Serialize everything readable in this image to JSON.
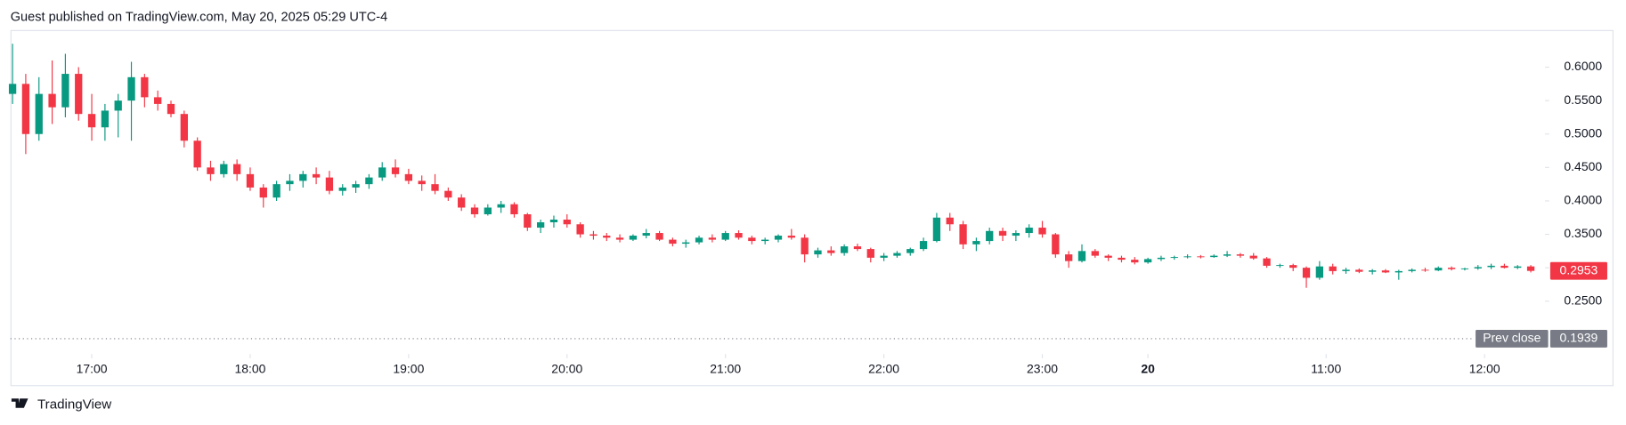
{
  "chart_data": {
    "type": "candlestick",
    "title": "Guest published on TradingView.com, May 20, 2025 05:29 UTC-4",
    "source": "TradingView",
    "up_color": "#089981",
    "down_color": "#f23645",
    "candles": [
      [
        0.56,
        0.635,
        0.545,
        0.575
      ],
      [
        0.575,
        0.59,
        0.47,
        0.5
      ],
      [
        0.5,
        0.585,
        0.49,
        0.56
      ],
      [
        0.56,
        0.61,
        0.515,
        0.54
      ],
      [
        0.54,
        0.62,
        0.525,
        0.59
      ],
      [
        0.59,
        0.6,
        0.52,
        0.53
      ],
      [
        0.53,
        0.56,
        0.49,
        0.51
      ],
      [
        0.51,
        0.545,
        0.49,
        0.535
      ],
      [
        0.535,
        0.56,
        0.495,
        0.55
      ],
      [
        0.55,
        0.608,
        0.49,
        0.585
      ],
      [
        0.585,
        0.59,
        0.54,
        0.555
      ],
      [
        0.555,
        0.565,
        0.535,
        0.545
      ],
      [
        0.545,
        0.55,
        0.525,
        0.53
      ],
      [
        0.53,
        0.535,
        0.48,
        0.49
      ],
      [
        0.49,
        0.495,
        0.445,
        0.45
      ],
      [
        0.45,
        0.46,
        0.43,
        0.44
      ],
      [
        0.44,
        0.46,
        0.435,
        0.455
      ],
      [
        0.455,
        0.462,
        0.43,
        0.44
      ],
      [
        0.44,
        0.45,
        0.415,
        0.42
      ],
      [
        0.42,
        0.425,
        0.39,
        0.405
      ],
      [
        0.405,
        0.43,
        0.4,
        0.425
      ],
      [
        0.425,
        0.44,
        0.415,
        0.43
      ],
      [
        0.43,
        0.445,
        0.42,
        0.44
      ],
      [
        0.44,
        0.45,
        0.425,
        0.435
      ],
      [
        0.435,
        0.445,
        0.41,
        0.415
      ],
      [
        0.415,
        0.425,
        0.408,
        0.42
      ],
      [
        0.42,
        0.43,
        0.412,
        0.425
      ],
      [
        0.425,
        0.44,
        0.418,
        0.435
      ],
      [
        0.435,
        0.458,
        0.43,
        0.45
      ],
      [
        0.45,
        0.462,
        0.435,
        0.44
      ],
      [
        0.44,
        0.448,
        0.425,
        0.43
      ],
      [
        0.43,
        0.438,
        0.415,
        0.425
      ],
      [
        0.425,
        0.44,
        0.41,
        0.415
      ],
      [
        0.415,
        0.42,
        0.4,
        0.405
      ],
      [
        0.405,
        0.41,
        0.385,
        0.39
      ],
      [
        0.39,
        0.395,
        0.375,
        0.38
      ],
      [
        0.38,
        0.395,
        0.378,
        0.39
      ],
      [
        0.39,
        0.4,
        0.382,
        0.395
      ],
      [
        0.395,
        0.398,
        0.375,
        0.38
      ],
      [
        0.38,
        0.382,
        0.355,
        0.36
      ],
      [
        0.36,
        0.372,
        0.352,
        0.368
      ],
      [
        0.368,
        0.378,
        0.36,
        0.372
      ],
      [
        0.372,
        0.38,
        0.36,
        0.365
      ],
      [
        0.365,
        0.368,
        0.345,
        0.35
      ],
      [
        0.35,
        0.355,
        0.342,
        0.348
      ],
      [
        0.348,
        0.352,
        0.34,
        0.345
      ],
      [
        0.345,
        0.35,
        0.338,
        0.342
      ],
      [
        0.342,
        0.35,
        0.34,
        0.348
      ],
      [
        0.348,
        0.358,
        0.344,
        0.352
      ],
      [
        0.352,
        0.355,
        0.34,
        0.342
      ],
      [
        0.342,
        0.345,
        0.332,
        0.336
      ],
      [
        0.336,
        0.342,
        0.33,
        0.338
      ],
      [
        0.338,
        0.348,
        0.335,
        0.345
      ],
      [
        0.345,
        0.35,
        0.338,
        0.342
      ],
      [
        0.342,
        0.355,
        0.34,
        0.352
      ],
      [
        0.352,
        0.356,
        0.342,
        0.345
      ],
      [
        0.345,
        0.348,
        0.335,
        0.34
      ],
      [
        0.34,
        0.345,
        0.335,
        0.342
      ],
      [
        0.342,
        0.35,
        0.338,
        0.348
      ],
      [
        0.348,
        0.358,
        0.342,
        0.345
      ],
      [
        0.345,
        0.35,
        0.308,
        0.32
      ],
      [
        0.32,
        0.33,
        0.315,
        0.326
      ],
      [
        0.326,
        0.332,
        0.318,
        0.322
      ],
      [
        0.322,
        0.335,
        0.318,
        0.332
      ],
      [
        0.332,
        0.336,
        0.325,
        0.328
      ],
      [
        0.328,
        0.33,
        0.308,
        0.315
      ],
      [
        0.315,
        0.322,
        0.31,
        0.318
      ],
      [
        0.318,
        0.325,
        0.315,
        0.322
      ],
      [
        0.322,
        0.33,
        0.318,
        0.328
      ],
      [
        0.328,
        0.345,
        0.325,
        0.34
      ],
      [
        0.34,
        0.382,
        0.338,
        0.375
      ],
      [
        0.375,
        0.382,
        0.355,
        0.365
      ],
      [
        0.365,
        0.37,
        0.328,
        0.335
      ],
      [
        0.335,
        0.345,
        0.325,
        0.34
      ],
      [
        0.34,
        0.36,
        0.335,
        0.355
      ],
      [
        0.355,
        0.36,
        0.34,
        0.348
      ],
      [
        0.348,
        0.356,
        0.34,
        0.352
      ],
      [
        0.352,
        0.365,
        0.345,
        0.36
      ],
      [
        0.36,
        0.37,
        0.345,
        0.35
      ],
      [
        0.35,
        0.352,
        0.315,
        0.32
      ],
      [
        0.32,
        0.325,
        0.3,
        0.31
      ],
      [
        0.31,
        0.335,
        0.308,
        0.325
      ],
      [
        0.325,
        0.328,
        0.315,
        0.318
      ],
      [
        0.318,
        0.32,
        0.31,
        0.315
      ],
      [
        0.315,
        0.318,
        0.308,
        0.312
      ],
      [
        0.312,
        0.316,
        0.305,
        0.308
      ],
      [
        0.308,
        0.315,
        0.306,
        0.313
      ],
      [
        0.313,
        0.318,
        0.31,
        0.315
      ],
      [
        0.315,
        0.318,
        0.312,
        0.316
      ],
      [
        0.316,
        0.32,
        0.314,
        0.317
      ],
      [
        0.317,
        0.319,
        0.314,
        0.316
      ],
      [
        0.316,
        0.32,
        0.315,
        0.318
      ],
      [
        0.318,
        0.325,
        0.316,
        0.32
      ],
      [
        0.32,
        0.322,
        0.315,
        0.318
      ],
      [
        0.318,
        0.322,
        0.312,
        0.314
      ],
      [
        0.314,
        0.316,
        0.3,
        0.303
      ],
      [
        0.303,
        0.306,
        0.3,
        0.304
      ],
      [
        0.304,
        0.306,
        0.295,
        0.3
      ],
      [
        0.3,
        0.302,
        0.27,
        0.285
      ],
      [
        0.285,
        0.31,
        0.282,
        0.302
      ],
      [
        0.302,
        0.306,
        0.29,
        0.295
      ],
      [
        0.295,
        0.3,
        0.291,
        0.297
      ],
      [
        0.297,
        0.299,
        0.292,
        0.294
      ],
      [
        0.294,
        0.298,
        0.29,
        0.296
      ],
      [
        0.296,
        0.298,
        0.292,
        0.293
      ],
      [
        0.293,
        0.297,
        0.282,
        0.295
      ],
      [
        0.295,
        0.299,
        0.293,
        0.297
      ],
      [
        0.297,
        0.3,
        0.294,
        0.296
      ],
      [
        0.296,
        0.302,
        0.295,
        0.3
      ],
      [
        0.3,
        0.302,
        0.296,
        0.298
      ],
      [
        0.298,
        0.3,
        0.296,
        0.299
      ],
      [
        0.299,
        0.304,
        0.297,
        0.301
      ],
      [
        0.301,
        0.306,
        0.298,
        0.303
      ],
      [
        0.303,
        0.306,
        0.299,
        0.3
      ],
      [
        0.3,
        0.304,
        0.298,
        0.302
      ],
      [
        0.302,
        0.304,
        0.293,
        0.2953
      ]
    ],
    "xlim": [
      -0.16,
      116.08
    ],
    "xticks": [
      {
        "value": 6,
        "label": "17:00"
      },
      {
        "value": 18,
        "label": "18:00"
      },
      {
        "value": 30,
        "label": "19:00"
      },
      {
        "value": 42,
        "label": "20:00"
      },
      {
        "value": 54,
        "label": "21:00"
      },
      {
        "value": 66,
        "label": "22:00"
      },
      {
        "value": 78,
        "label": "23:00"
      },
      {
        "value": 86,
        "label": "20"
      },
      {
        "value": 99.5,
        "label": "11:00"
      },
      {
        "value": 111.5,
        "label": "12:00"
      }
    ],
    "ylim": [
      0.174,
      0.654
    ],
    "yticks": [
      {
        "value": 0.25,
        "label": "0.2500"
      },
      {
        "value": 0.3,
        "label": "0.3000"
      },
      {
        "value": 0.35,
        "label": "0.3500"
      },
      {
        "value": 0.4,
        "label": "0.4000"
      },
      {
        "value": 0.45,
        "label": "0.4500"
      },
      {
        "value": 0.5,
        "label": "0.5000"
      },
      {
        "value": 0.55,
        "label": "0.5500"
      },
      {
        "value": 0.6,
        "label": "0.6000"
      }
    ],
    "prev_close_label": "Prev close",
    "prev_close": 0.1939,
    "prev_close_color": "#787b86"
  }
}
